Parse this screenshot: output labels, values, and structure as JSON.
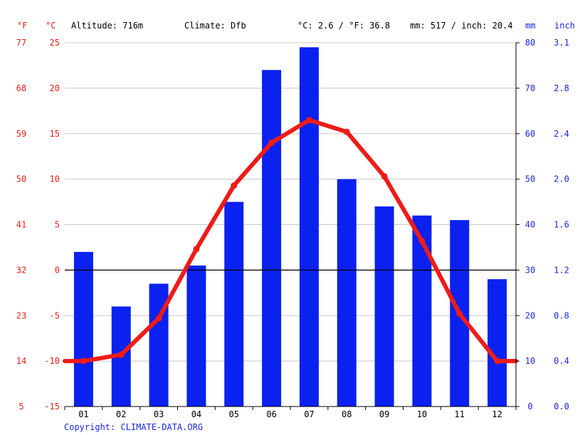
{
  "header": {
    "unit_f": "°F",
    "unit_c": "°C",
    "altitude": "Altitude: 716m",
    "climate": "Climate: Dfb",
    "avg_temp": "°C: 2.6 / °F: 36.8",
    "precip": "mm: 517 / inch: 20.4",
    "unit_mm": "mm",
    "unit_inch": "inch"
  },
  "copyright": "Copyright: CLIMATE-DATA.ORG",
  "colors": {
    "temperature": "#ee1c17",
    "precipitation": "#0a21f0",
    "grid": "#c8c8c8",
    "zero_line": "#000000",
    "left_labels": "#e8201b",
    "right_labels": "#1a27e0"
  },
  "chart_data": {
    "type": "bar",
    "categories": [
      "01",
      "02",
      "03",
      "04",
      "05",
      "06",
      "07",
      "08",
      "09",
      "10",
      "11",
      "12"
    ],
    "series": [
      {
        "type": "bar",
        "axis": "right",
        "unit": "mm",
        "values": [
          34,
          22,
          27,
          31,
          45,
          74,
          79,
          50,
          44,
          42,
          41,
          28
        ]
      },
      {
        "type": "line",
        "axis": "left",
        "unit": "°C",
        "values": [
          -10.0,
          -9.3,
          -5.3,
          2.3,
          9.3,
          14.0,
          16.5,
          15.2,
          10.3,
          3.2,
          -4.8,
          -10.0
        ]
      }
    ],
    "left_axis_c": {
      "ticks": [
        25,
        20,
        15,
        10,
        5,
        0,
        -5,
        -10,
        -15
      ],
      "ylim": [
        -15,
        25
      ]
    },
    "left_axis_f": {
      "ticks": [
        77,
        68,
        59,
        50,
        41,
        32,
        23,
        14,
        5
      ]
    },
    "right_axis_mm": {
      "ticks": [
        80,
        70,
        60,
        50,
        40,
        30,
        20,
        10,
        0
      ],
      "ylim": [
        0,
        80
      ]
    },
    "right_axis_inch": {
      "ticks": [
        "3.1",
        "2.8",
        "2.4",
        "2.0",
        "1.6",
        "1.2",
        "0.8",
        "0.4",
        "0.0"
      ]
    },
    "grid": true
  }
}
